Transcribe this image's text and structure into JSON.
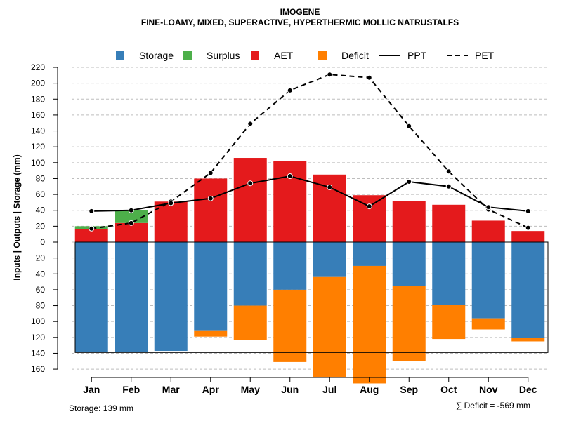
{
  "chart_data": {
    "type": "bar",
    "title": "IMOGENE",
    "subtitle": "FINE-LOAMY, MIXED, SUPERACTIVE, HYPERTHERMIC MOLLIC NATRUSTALFS",
    "ylabel": "Inputs | Outputs | Storage    (mm)",
    "categories": [
      "Jan",
      "Feb",
      "Mar",
      "Apr",
      "May",
      "Jun",
      "Jul",
      "Aug",
      "Sep",
      "Oct",
      "Nov",
      "Dec"
    ],
    "ylim_positive": [
      0,
      220
    ],
    "ylim_negative": [
      0,
      160
    ],
    "yticks_top": [
      220,
      200,
      180,
      160,
      140,
      120,
      100,
      80,
      60,
      40,
      20
    ],
    "ytick_zero": 0,
    "yticks_bottom": [
      20,
      40,
      60,
      80,
      100,
      120,
      140,
      160
    ],
    "grid": true,
    "legend_position": "top",
    "series": [
      {
        "name": "Storage",
        "color": "#377eb8",
        "direction": "down",
        "values": [
          139,
          139,
          137,
          112,
          80,
          60,
          44,
          30,
          55,
          79,
          96,
          121
        ]
      },
      {
        "name": "Surplus",
        "color": "#4daf4a",
        "direction": "up",
        "values": [
          4,
          16,
          0,
          0,
          0,
          0,
          0,
          0,
          0,
          0,
          0,
          0
        ]
      },
      {
        "name": "AET",
        "color": "#e41a1c",
        "direction": "up",
        "values": [
          16,
          24,
          51,
          80,
          106,
          102,
          85,
          59,
          52,
          47,
          27,
          14
        ]
      },
      {
        "name": "Deficit",
        "color": "#ff7f00",
        "direction": "down",
        "values": [
          0,
          0,
          0,
          7,
          43,
          91,
          127,
          148,
          95,
          43,
          14,
          4
        ]
      },
      {
        "name": "PPT",
        "color": "#000000",
        "style": "solid",
        "values": [
          39,
          40,
          49,
          55,
          74,
          83,
          69,
          45,
          76,
          70,
          44,
          39
        ]
      },
      {
        "name": "PET",
        "color": "#000000",
        "style": "dashed",
        "values": [
          17,
          24,
          51,
          87,
          149,
          191,
          211,
          207,
          146,
          89,
          41,
          18
        ]
      }
    ],
    "storage_capacity": 139,
    "footer_left": "Storage: 139 mm",
    "footer_right": "∑ Deficit = -569 mm"
  }
}
